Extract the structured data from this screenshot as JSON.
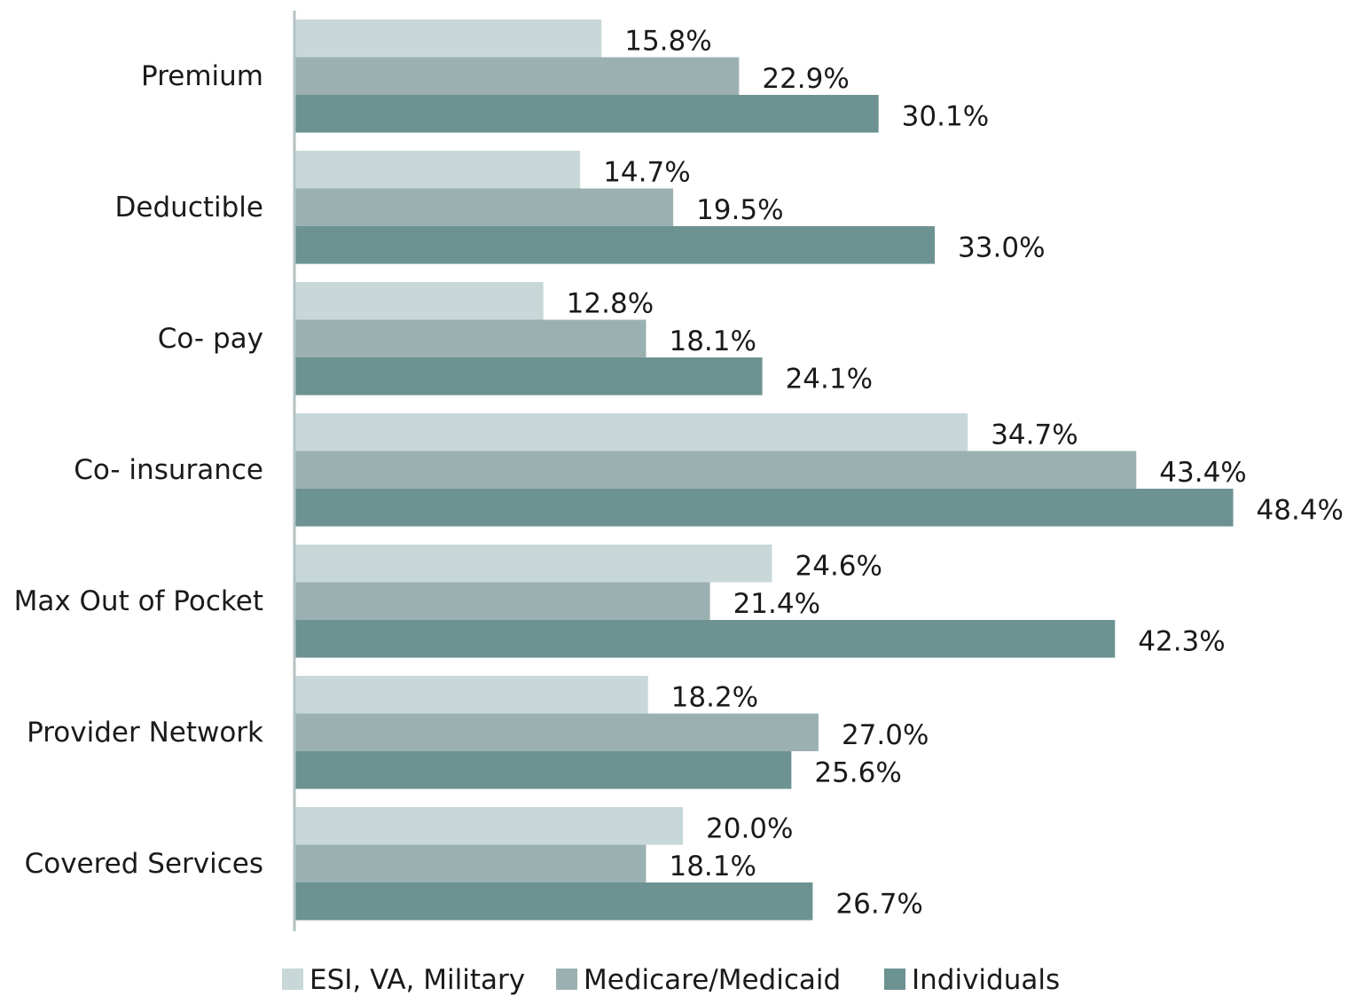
{
  "chart_data": {
    "type": "bar",
    "orientation": "horizontal",
    "title": "",
    "xlabel": "",
    "ylabel": "",
    "xlim": [
      0,
      50
    ],
    "grid": false,
    "legend_position": "bottom",
    "categories": [
      "Premium",
      "Deductible",
      "Co- pay",
      "Co- insurance",
      "Max Out of Pocket",
      "Provider Network",
      "Covered Services"
    ],
    "series": [
      {
        "name": "ESI, VA, Military",
        "color": "#c8d7d7",
        "values": [
          15.8,
          14.7,
          12.8,
          34.7,
          24.6,
          18.2,
          20.0
        ],
        "labels": [
          "15.8%",
          "14.7%",
          "12.8%",
          "34.7%",
          "24.6%",
          "18.2%",
          "20.0%"
        ]
      },
      {
        "name": "Medicare/Medicaid",
        "color": "#9bb1b1",
        "values": [
          22.9,
          19.5,
          18.1,
          43.4,
          21.4,
          27.0,
          18.1
        ],
        "labels": [
          "22.9%",
          "19.5%",
          "18.1%",
          "43.4%",
          "21.4%",
          "27.0%",
          "18.1%"
        ]
      },
      {
        "name": "Individuals",
        "color": "#6d9292",
        "values": [
          30.1,
          33.0,
          24.1,
          48.4,
          42.3,
          25.6,
          26.7
        ],
        "labels": [
          "30.1%",
          "33.0%",
          "24.1%",
          "48.4%",
          "42.3%",
          "25.6%",
          "26.7%"
        ]
      }
    ]
  }
}
